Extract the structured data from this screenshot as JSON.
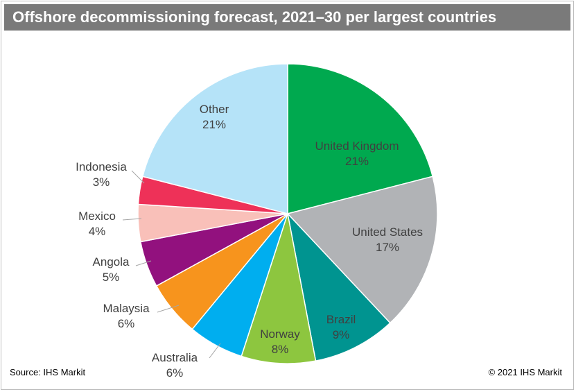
{
  "chart_data": {
    "type": "pie",
    "title": "Offshore decommissioning forecast, 2021–30 per largest countries",
    "slices": [
      {
        "label": "United Kingdom",
        "value": 21,
        "value_label": "21%",
        "color": "#00a94f"
      },
      {
        "label": "United States",
        "value": 17,
        "value_label": "17%",
        "color": "#b1b3b6"
      },
      {
        "label": "Brazil",
        "value": 9,
        "value_label": "9%",
        "color": "#009490"
      },
      {
        "label": "Norway",
        "value": 8,
        "value_label": "8%",
        "color": "#8dc63f"
      },
      {
        "label": "Australia",
        "value": 6,
        "value_label": "6%",
        "color": "#00aeef"
      },
      {
        "label": "Malaysia",
        "value": 6,
        "value_label": "6%",
        "color": "#f7941d"
      },
      {
        "label": "Angola",
        "value": 5,
        "value_label": "5%",
        "color": "#92117e"
      },
      {
        "label": "Mexico",
        "value": 4,
        "value_label": "4%",
        "color": "#f9c0b9"
      },
      {
        "label": "Indonesia",
        "value": 3,
        "value_label": "3%",
        "color": "#ee3158"
      },
      {
        "label": "Other",
        "value": 21,
        "value_label": "21%",
        "color": "#b5e3f8"
      }
    ]
  },
  "footer": {
    "source": "Source: IHS Markit",
    "copyright": "© 2021 IHS Markit"
  }
}
